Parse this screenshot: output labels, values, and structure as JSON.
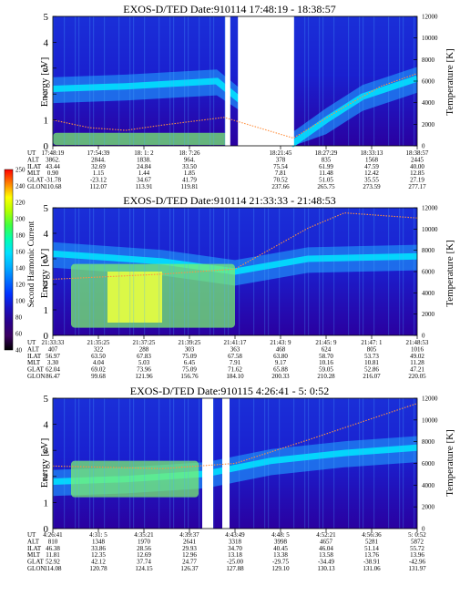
{
  "panels": [
    {
      "title": "EXOS-D/TED   Date:910114  17:48:19 - 18:38:57",
      "gaps": [
        [
          0.473,
          0.487
        ],
        [
          0.508,
          0.662
        ]
      ],
      "bright_band": [
        [
          0.0,
          2.2
        ],
        [
          0.2,
          2.3
        ],
        [
          0.45,
          2.5
        ],
        [
          0.66,
          0.1
        ],
        [
          0.75,
          1.0
        ],
        [
          0.85,
          1.9
        ],
        [
          1.0,
          2.6
        ]
      ],
      "temp_curve": [
        [
          0.0,
          1.0
        ],
        [
          0.1,
          0.7
        ],
        [
          0.2,
          0.6
        ],
        [
          0.3,
          0.8
        ],
        [
          0.47,
          1.1
        ],
        [
          0.66,
          0.3
        ],
        [
          0.8,
          1.5
        ],
        [
          0.9,
          2.3
        ],
        [
          1.0,
          2.8
        ]
      ],
      "green_blob": [
        [
          0.0,
          0.03
        ],
        [
          0.48,
          0.5
        ]
      ],
      "columns": [
        {
          "ut": "17:48:19",
          "alt": "3862.",
          "ilat": "43.44",
          "mlt": "0.90",
          "glat": "-31.78",
          "glon": "110.68"
        },
        {
          "ut": "17:54:39",
          "alt": "2844.",
          "ilat": "32.69",
          "mlt": "1.15",
          "glat": "-23.12",
          "glon": "112.07"
        },
        {
          "ut": "18: 1: 2",
          "alt": "1838.",
          "ilat": "24.84",
          "mlt": "1.44",
          "glat": "34.67",
          "glon": "113.91"
        },
        {
          "ut": "18: 7:26",
          "alt": "964.",
          "ilat": "33.50",
          "mlt": "1.85",
          "glat": "41.79",
          "glon": "119.81"
        },
        {
          "ut": "",
          "alt": "",
          "ilat": "",
          "mlt": "",
          "glat": "",
          "glon": ""
        },
        {
          "ut": "18:21:45",
          "alt": "378",
          "ilat": "75.54",
          "mlt": "7.81",
          "glat": "70.52",
          "glon": "237.66"
        },
        {
          "ut": "18:27:29",
          "alt": "835",
          "ilat": "61.99",
          "mlt": "11.48",
          "glat": "51.05",
          "glon": "265.75"
        },
        {
          "ut": "18:33:13",
          "alt": "1568",
          "ilat": "47.59",
          "mlt": "12.42",
          "glat": "35.55",
          "glon": "273.59"
        },
        {
          "ut": "18:38:57",
          "alt": "2445",
          "ilat": "40.00",
          "mlt": "12.85",
          "glat": "27.19",
          "glon": "277.17"
        }
      ]
    },
    {
      "title": "EXOS-D/TED   Date:910114  21:33:33 - 21:48:53",
      "gaps": [],
      "bright_band": [
        [
          0.0,
          3.2
        ],
        [
          0.3,
          2.9
        ],
        [
          0.5,
          2.5
        ],
        [
          0.7,
          3.0
        ],
        [
          1.0,
          3.1
        ]
      ],
      "temp_curve": [
        [
          0.0,
          2.2
        ],
        [
          0.3,
          2.4
        ],
        [
          0.5,
          2.6
        ],
        [
          0.7,
          4.2
        ],
        [
          0.8,
          4.8
        ],
        [
          1.0,
          4.6
        ]
      ],
      "green_blob": [
        [
          0.05,
          0.3
        ],
        [
          0.5,
          2.8
        ]
      ],
      "columns": [
        {
          "ut": "21:33:33",
          "alt": "407",
          "ilat": "56.97",
          "mlt": "3.30",
          "glat": "62.04",
          "glon": "86.47"
        },
        {
          "ut": "21:35:25",
          "alt": "322",
          "ilat": "63.50",
          "mlt": "4.04",
          "glat": "69.02",
          "glon": "99.68"
        },
        {
          "ut": "21:37:25",
          "alt": "288",
          "ilat": "67.83",
          "mlt": "5.03",
          "glat": "73.96",
          "glon": "121.96"
        },
        {
          "ut": "21:39:25",
          "alt": "303",
          "ilat": "75.09",
          "mlt": "6.45",
          "glat": "75.09",
          "glon": "156.76"
        },
        {
          "ut": "21:41:17",
          "alt": "363",
          "ilat": "67.58",
          "mlt": "7.91",
          "glat": "71.62",
          "glon": "184.10"
        },
        {
          "ut": "21:43: 9",
          "alt": "468",
          "ilat": "63.80",
          "mlt": "9.17",
          "glat": "65.88",
          "glon": "200.33"
        },
        {
          "ut": "21:45: 9",
          "alt": "624",
          "ilat": "58.70",
          "mlt": "10.16",
          "glat": "59.05",
          "glon": "210.28"
        },
        {
          "ut": "21:47: 1",
          "alt": "805",
          "ilat": "53.73",
          "mlt": "10.81",
          "glat": "52.86",
          "glon": "216.07"
        },
        {
          "ut": "21:48:53",
          "alt": "1016",
          "ilat": "49.02",
          "mlt": "11.28",
          "glat": "47.21",
          "glon": "220.05"
        }
      ]
    },
    {
      "title": "EXOS-D/TED   Date:910115  4:26:41 - 5: 0:52",
      "gaps": [
        [
          0.41,
          0.44
        ],
        [
          0.465,
          0.485
        ]
      ],
      "bright_band": [
        [
          0.0,
          1.8
        ],
        [
          0.2,
          1.9
        ],
        [
          0.42,
          2.1
        ],
        [
          0.6,
          2.6
        ],
        [
          0.8,
          2.9
        ],
        [
          1.0,
          3.1
        ]
      ],
      "temp_curve": [
        [
          0.0,
          2.4
        ],
        [
          0.3,
          2.3
        ],
        [
          0.5,
          2.5
        ],
        [
          0.7,
          3.4
        ],
        [
          0.85,
          4.1
        ],
        [
          1.0,
          4.8
        ]
      ],
      "green_blob": [
        [
          0.05,
          1.2
        ],
        [
          0.4,
          2.6
        ]
      ],
      "columns": [
        {
          "ut": "4:26:41",
          "alt": "810",
          "ilat": "46.38",
          "mlt": "11.81",
          "glat": "52.92",
          "glon": "114.08"
        },
        {
          "ut": "4:31: 5",
          "alt": "1348",
          "ilat": "33.86",
          "mlt": "12.35",
          "glat": "42.12",
          "glon": "120.78"
        },
        {
          "ut": "4:35:21",
          "alt": "1970",
          "ilat": "28.56",
          "mlt": "12.69",
          "glat": "37.74",
          "glon": "124.15"
        },
        {
          "ut": "4:39:37",
          "alt": "2641",
          "ilat": "29.93",
          "mlt": "12.96",
          "glat": "24.77",
          "glon": "126.37"
        },
        {
          "ut": "4:43:49",
          "alt": "3318",
          "ilat": "34.70",
          "mlt": "13.18",
          "glat": "-25.00",
          "glon": "127.88"
        },
        {
          "ut": "4:48: 5",
          "alt": "3998",
          "ilat": "40.45",
          "mlt": "13.38",
          "glat": "-29.75",
          "glon": "129.10"
        },
        {
          "ut": "4:52:21",
          "alt": "4657",
          "ilat": "46.04",
          "mlt": "13.58",
          "glat": "-34.49",
          "glon": "130.13"
        },
        {
          "ut": "4:56:36",
          "alt": "5281",
          "ilat": "51.14",
          "mlt": "13.76",
          "glat": "-38.91",
          "glon": "131.06"
        },
        {
          "ut": "5: 0:52",
          "alt": "5872",
          "ilat": "55.72",
          "mlt": "13.96",
          "glat": "-42.96",
          "glon": "131.97"
        }
      ]
    }
  ],
  "ylabel": "Energy [eV]",
  "y2label": "Temperature [K]",
  "row_labels": [
    "UT",
    "ALT",
    "ILAT",
    "MLT",
    "GLAT",
    "GLON"
  ],
  "y_ticks": [
    "0",
    "1",
    "2",
    "3",
    "4",
    "5"
  ],
  "y2_ticks": [
    "0",
    "2000",
    "4000",
    "6000",
    "8000",
    "10000",
    "12000"
  ],
  "colorbar": {
    "label": "Second Harmonic Current",
    "ticks": [
      "40",
      "60",
      "80",
      "100",
      "120",
      "140",
      "160",
      "180",
      "200",
      "220",
      "240",
      "250"
    ],
    "colors": [
      "#000000",
      "#3a0060",
      "#2a008a",
      "#1a10c0",
      "#0030ff",
      "#0070ff",
      "#00b0ff",
      "#00e0ff",
      "#00ffb0",
      "#40ff40",
      "#b0ff00",
      "#ffff00",
      "#ff8000",
      "#ff0000"
    ]
  },
  "chart_data": [
    {
      "type": "heatmap",
      "title": "EXOS-D/TED   Date:910114  17:48:19 - 18:38:57",
      "x_tick_labels": [
        "17:48:19",
        "17:54:39",
        "18: 1: 2",
        "18: 7:26",
        "18:21:45",
        "18:27:29",
        "18:33:13",
        "18:38:57"
      ],
      "ylabel": "Energy [eV]",
      "ylim": [
        0,
        5
      ],
      "y2label": "Temperature [K]",
      "y2lim": [
        0,
        12000
      ],
      "colorbar_label": "Second Harmonic Current",
      "colorbar_range": [
        40,
        250
      ]
    },
    {
      "type": "heatmap",
      "title": "EXOS-D/TED   Date:910114  21:33:33 - 21:48:53",
      "x_tick_labels": [
        "21:33:33",
        "21:35:25",
        "21:37:25",
        "21:39:25",
        "21:41:17",
        "21:43: 9",
        "21:45: 9",
        "21:47: 1",
        "21:48:53"
      ],
      "ylabel": "Energy [eV]",
      "ylim": [
        0,
        5
      ],
      "y2label": "Temperature [K]",
      "y2lim": [
        0,
        12000
      ],
      "colorbar_label": "Second Harmonic Current",
      "colorbar_range": [
        40,
        250
      ]
    },
    {
      "type": "heatmap",
      "title": "EXOS-D/TED   Date:910115  4:26:41 - 5: 0:52",
      "x_tick_labels": [
        "4:26:41",
        "4:31: 5",
        "4:35:21",
        "4:39:37",
        "4:43:49",
        "4:48: 5",
        "4:52:21",
        "4:56:36",
        "5: 0:52"
      ],
      "ylabel": "Energy [eV]",
      "ylim": [
        0,
        5
      ],
      "y2label": "Temperature [K]",
      "y2lim": [
        0,
        12000
      ],
      "colorbar_label": "Second Harmonic Current",
      "colorbar_range": [
        40,
        250
      ]
    }
  ]
}
